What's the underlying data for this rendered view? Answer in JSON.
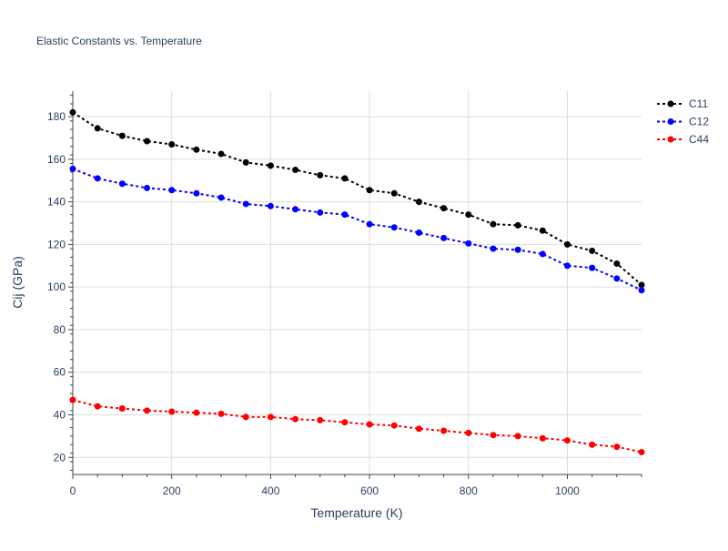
{
  "chart_data": {
    "type": "line",
    "title": "Elastic Constants vs. Temperature",
    "xlabel": "Temperature (K)",
    "ylabel": "Cij (GPa)",
    "xlim": [
      0,
      1150
    ],
    "ylim": [
      12,
      192
    ],
    "x_ticks": [
      0,
      200,
      400,
      600,
      800,
      1000
    ],
    "y_ticks": [
      20,
      40,
      60,
      80,
      100,
      120,
      140,
      160,
      180
    ],
    "grid": true,
    "legend_position": "top-right",
    "x": [
      0,
      50,
      100,
      150,
      200,
      250,
      300,
      350,
      400,
      450,
      500,
      550,
      600,
      650,
      700,
      750,
      800,
      850,
      900,
      950,
      1000,
      1050,
      1100,
      1150
    ],
    "series": [
      {
        "name": "C11",
        "color": "#000000",
        "values": [
          182,
          174.5,
          171,
          168.5,
          167,
          164.5,
          162.5,
          158.5,
          157,
          155,
          152.5,
          151,
          145.5,
          144,
          140,
          137,
          134,
          129.5,
          129,
          126.5,
          120,
          117,
          111,
          101
        ]
      },
      {
        "name": "C12",
        "color": "#0000ff",
        "values": [
          155.5,
          151,
          148.5,
          146.5,
          145.5,
          144,
          142,
          139,
          138,
          136.5,
          135,
          134,
          129.5,
          128,
          125.5,
          123,
          120.5,
          118,
          117.5,
          115.5,
          110,
          109,
          104,
          98.5
        ]
      },
      {
        "name": "C44",
        "color": "#ff0000",
        "values": [
          47,
          44,
          43,
          42,
          41.5,
          41,
          40.5,
          39,
          39,
          38,
          37.5,
          36.5,
          35.5,
          35,
          33.5,
          32.5,
          31.5,
          30.5,
          30,
          29,
          28,
          26,
          25,
          22.5
        ]
      }
    ]
  }
}
